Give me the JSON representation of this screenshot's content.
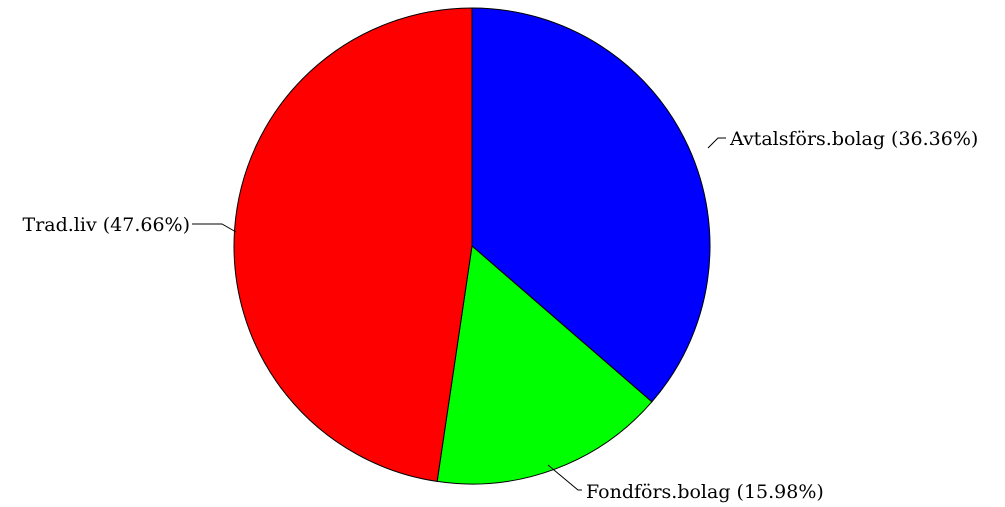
{
  "chart_data": {
    "type": "pie",
    "slices": [
      {
        "label": "Avtalsförs.bolag (36.36%)",
        "value": 36.36,
        "color": "#0000ff"
      },
      {
        "label": "Fondförs.bolag (15.98%)",
        "value": 15.98,
        "color": "#00ff00"
      },
      {
        "label": "Trad.liv (47.66%)",
        "value": 47.66,
        "color": "#ff0000"
      }
    ],
    "start": "top",
    "direction": "clockwise"
  }
}
